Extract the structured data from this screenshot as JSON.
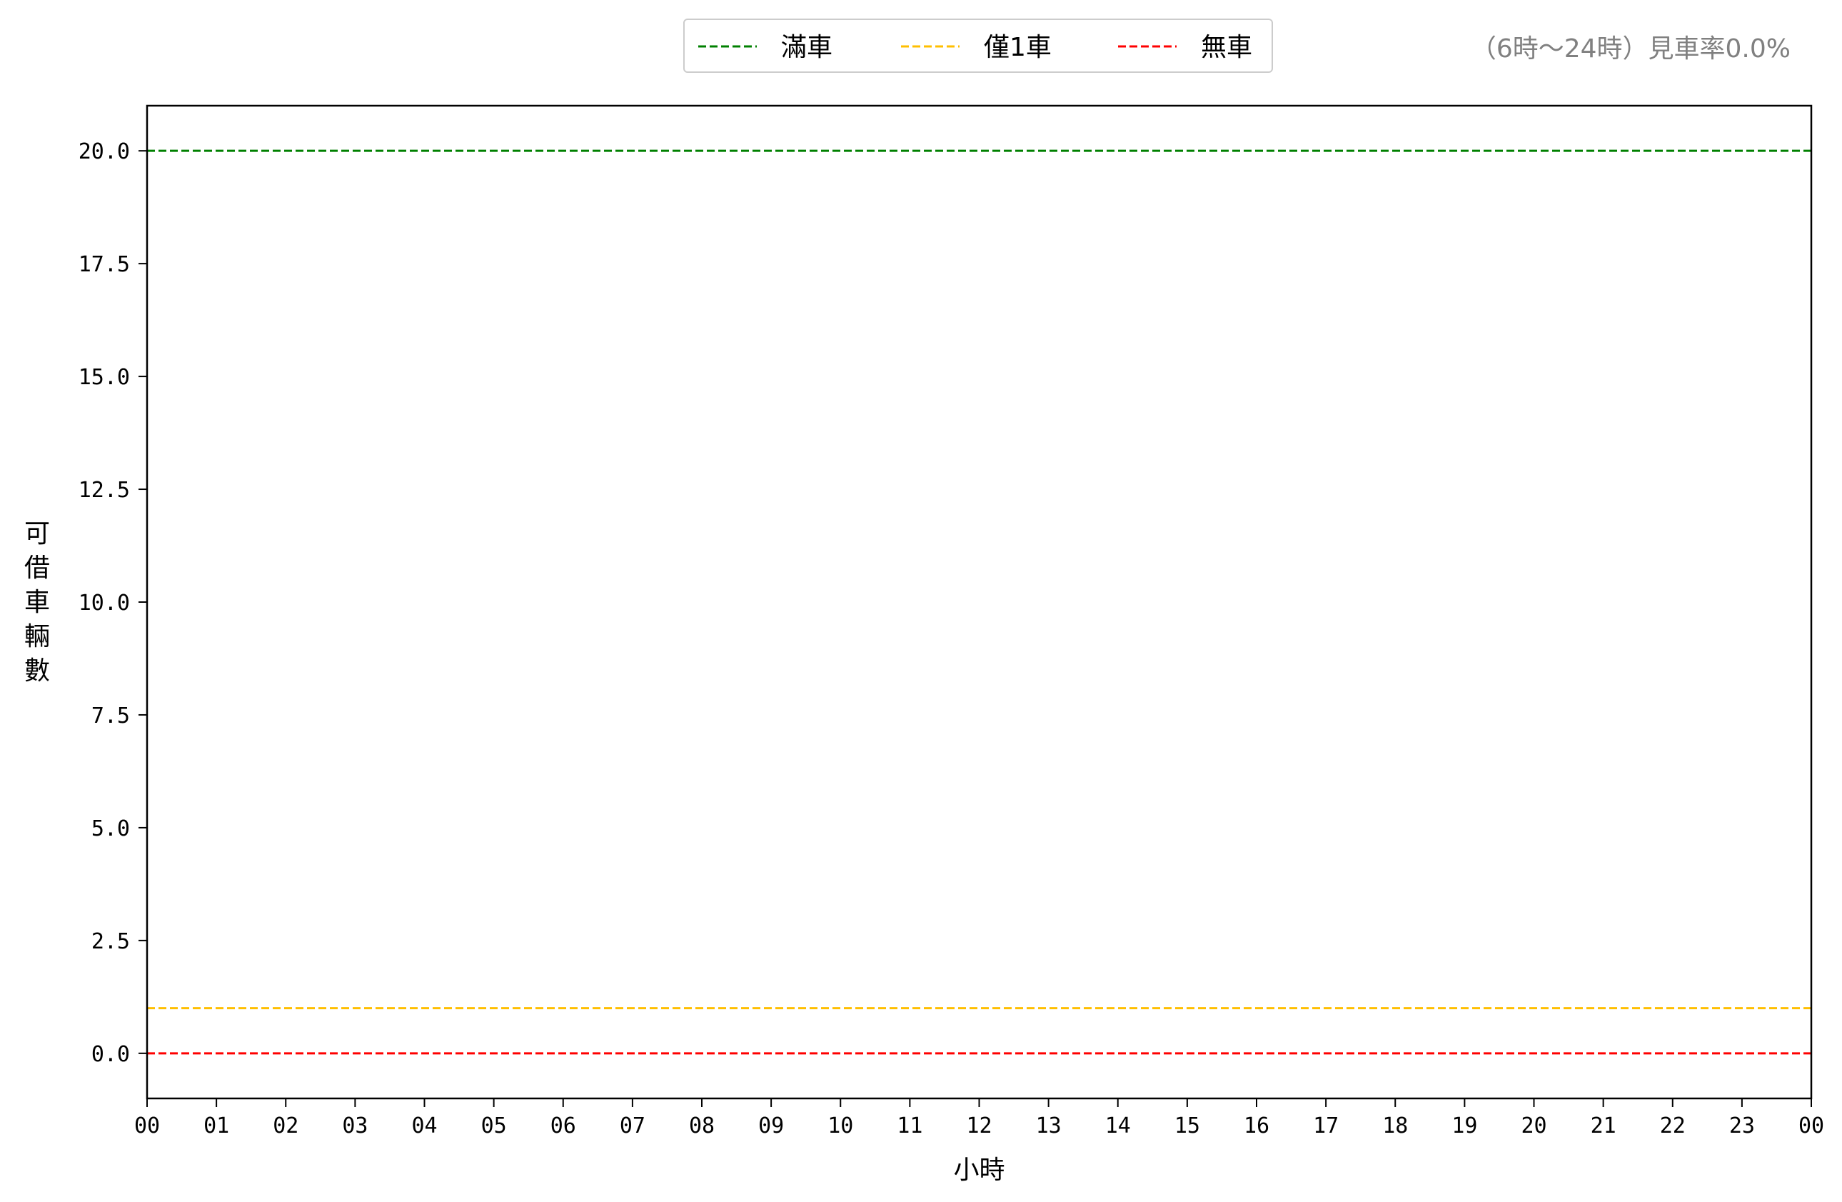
{
  "chart_data": {
    "type": "line",
    "title": "",
    "xlabel": "小時",
    "ylabel": "可借車輛數",
    "ylim": [
      -1,
      21
    ],
    "yticks": [
      0.0,
      2.5,
      5.0,
      7.5,
      10.0,
      12.5,
      15.0,
      17.5,
      20.0
    ],
    "ytick_labels": [
      "0.0",
      "2.5",
      "5.0",
      "7.5",
      "10.0",
      "12.5",
      "15.0",
      "17.5",
      "20.0"
    ],
    "x_tick_labels": [
      "00",
      "01",
      "02",
      "03",
      "04",
      "05",
      "06",
      "07",
      "08",
      "09",
      "10",
      "11",
      "12",
      "13",
      "14",
      "15",
      "16",
      "17",
      "18",
      "19",
      "20",
      "21",
      "22",
      "23",
      "00"
    ],
    "xlim": [
      0,
      24
    ],
    "grid": false,
    "legend_position": "top-center",
    "series": [
      {
        "name": "滿車",
        "y": 20,
        "style": "dashed",
        "color": "#008000"
      },
      {
        "name": "僅1車",
        "y": 1,
        "style": "dashed",
        "color": "#ffbf00"
      },
      {
        "name": "無車",
        "y": 0,
        "style": "dashed",
        "color": "#ff0000"
      }
    ],
    "annotation": "（6時～24時）見車率0.0%"
  }
}
